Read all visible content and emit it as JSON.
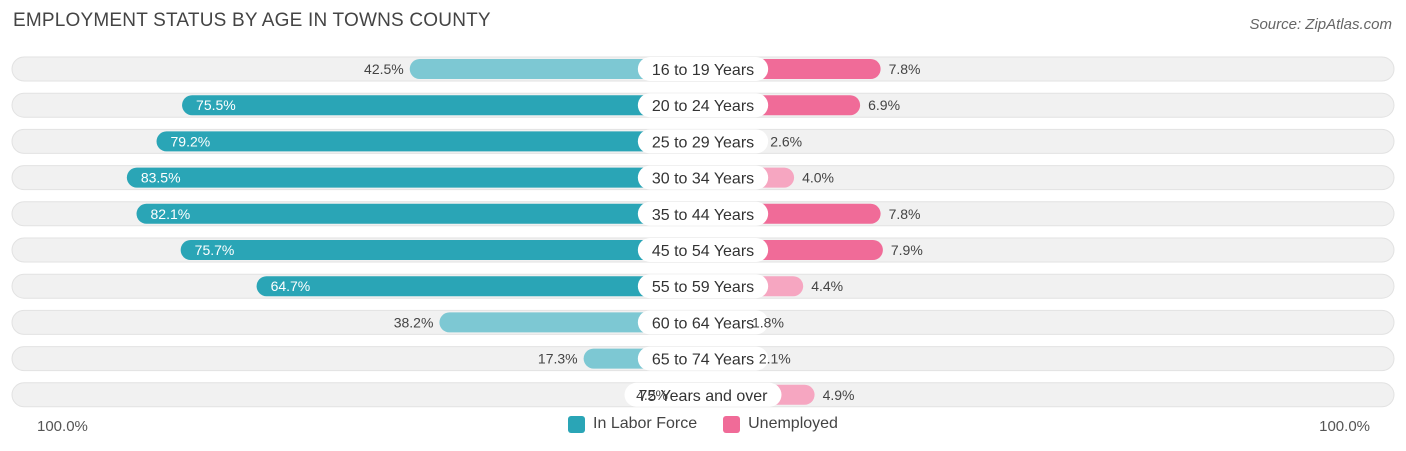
{
  "title": "EMPLOYMENT STATUS BY AGE IN TOWNS COUNTY",
  "source": "Source: ZipAtlas.com",
  "axis": {
    "left_label": "100.0%",
    "right_label": "100.0%"
  },
  "legend": {
    "labor_label": "In Labor Force",
    "unemployed_label": "Unemployed"
  },
  "colors": {
    "labor_dark": "#2aa5b6",
    "labor_light": "#7dc8d3",
    "unemployed_dark": "#f06b98",
    "unemployed_light": "#f6a6c1",
    "track": "#f1f1f1"
  },
  "chart_data": {
    "type": "bar",
    "orientation": "horizontal-diverging",
    "categories": [
      "16 to 19 Years",
      "20 to 24 Years",
      "25 to 29 Years",
      "30 to 34 Years",
      "35 to 44 Years",
      "45 to 54 Years",
      "55 to 59 Years",
      "60 to 64 Years",
      "65 to 74 Years",
      "75 Years and over"
    ],
    "series": [
      {
        "name": "In Labor Force",
        "values": [
          42.5,
          75.5,
          79.2,
          83.5,
          82.1,
          75.7,
          64.7,
          38.2,
          17.3,
          4.2
        ]
      },
      {
        "name": "Unemployed",
        "values": [
          7.8,
          6.9,
          2.6,
          4.0,
          7.8,
          7.9,
          4.4,
          1.8,
          2.1,
          4.9
        ]
      }
    ],
    "labels": {
      "labor": [
        "42.5%",
        "75.5%",
        "79.2%",
        "83.5%",
        "82.1%",
        "75.7%",
        "64.7%",
        "38.2%",
        "17.3%",
        "4.2%"
      ],
      "unemployed": [
        "7.8%",
        "6.9%",
        "2.6%",
        "4.0%",
        "7.8%",
        "7.9%",
        "4.4%",
        "1.8%",
        "2.1%",
        "4.9%"
      ]
    },
    "xlim": [
      0,
      100
    ],
    "legend_position": "bottom-center"
  }
}
